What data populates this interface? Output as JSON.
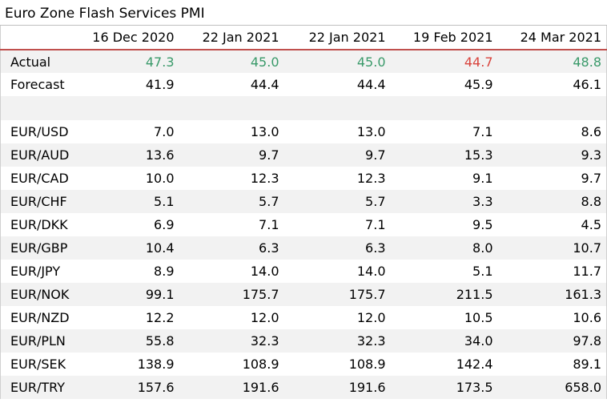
{
  "title": "Euro Zone Flash Services PMI",
  "colors": {
    "beat": "#3a9a6a",
    "miss": "#d9443d",
    "header_rule": "#c0504d",
    "stripe": "#f2f2f2"
  },
  "columns": [
    "",
    "16 Dec 2020",
    "22 Jan 2021",
    "22 Jan 2021",
    "19 Feb 2021",
    "24 Mar 2021"
  ],
  "actual": {
    "label": "Actual",
    "values": [
      "47.3",
      "45.0",
      "45.0",
      "44.7",
      "48.8"
    ],
    "status": [
      "beat",
      "beat",
      "beat",
      "miss",
      "beat"
    ]
  },
  "forecast": {
    "label": "Forecast",
    "values": [
      "41.9",
      "44.4",
      "44.4",
      "45.9",
      "46.1"
    ]
  },
  "pairs": [
    {
      "label": "EUR/USD",
      "values": [
        "7.0",
        "13.0",
        "13.0",
        "7.1",
        "8.6"
      ]
    },
    {
      "label": "EUR/AUD",
      "values": [
        "13.6",
        "9.7",
        "9.7",
        "15.3",
        "9.3"
      ]
    },
    {
      "label": "EUR/CAD",
      "values": [
        "10.0",
        "12.3",
        "12.3",
        "9.1",
        "9.7"
      ]
    },
    {
      "label": "EUR/CHF",
      "values": [
        "5.1",
        "5.7",
        "5.7",
        "3.3",
        "8.8"
      ]
    },
    {
      "label": "EUR/DKK",
      "values": [
        "6.9",
        "7.1",
        "7.1",
        "9.5",
        "4.5"
      ]
    },
    {
      "label": "EUR/GBP",
      "values": [
        "10.4",
        "6.3",
        "6.3",
        "8.0",
        "10.7"
      ]
    },
    {
      "label": "EUR/JPY",
      "values": [
        "8.9",
        "14.0",
        "14.0",
        "5.1",
        "11.7"
      ]
    },
    {
      "label": "EUR/NOK",
      "values": [
        "99.1",
        "175.7",
        "175.7",
        "211.5",
        "161.3"
      ]
    },
    {
      "label": "EUR/NZD",
      "values": [
        "12.2",
        "12.0",
        "12.0",
        "10.5",
        "10.6"
      ]
    },
    {
      "label": "EUR/PLN",
      "values": [
        "55.8",
        "32.3",
        "32.3",
        "34.0",
        "97.8"
      ]
    },
    {
      "label": "EUR/SEK",
      "values": [
        "138.9",
        "108.9",
        "108.9",
        "142.4",
        "89.1"
      ]
    },
    {
      "label": "EUR/TRY",
      "values": [
        "157.6",
        "191.6",
        "191.6",
        "173.5",
        "658.0"
      ]
    }
  ]
}
